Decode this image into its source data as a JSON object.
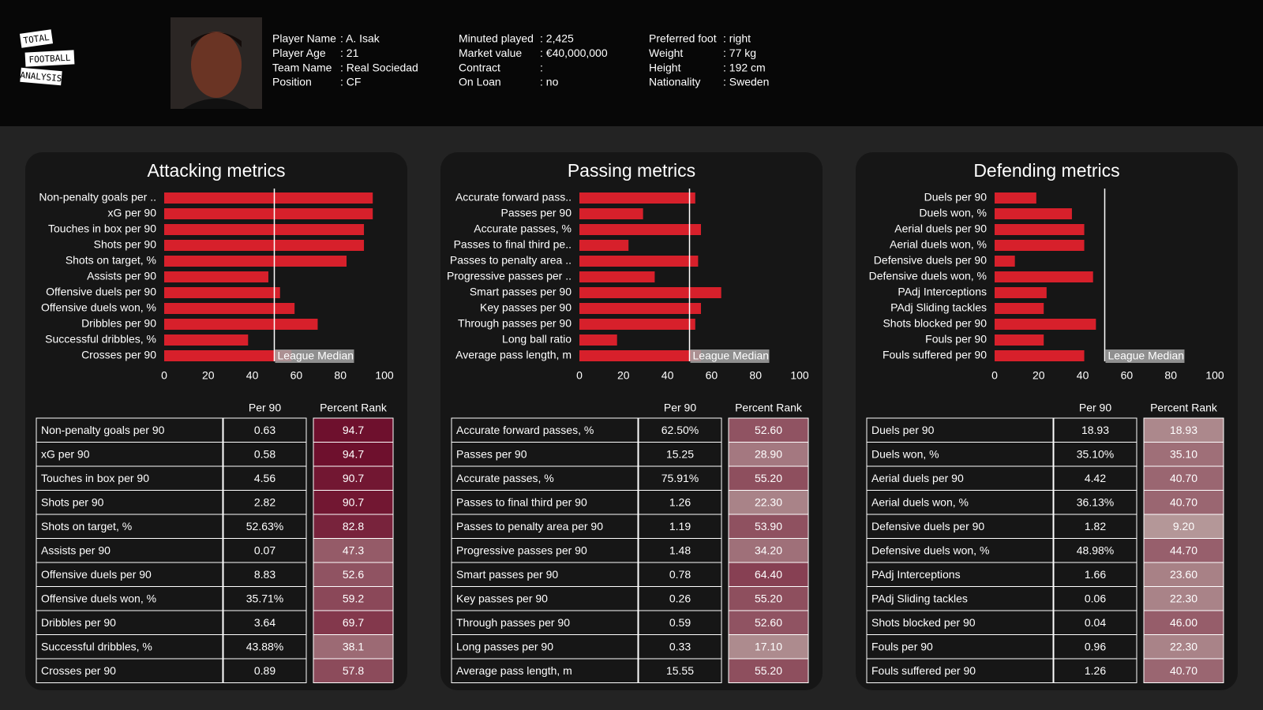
{
  "header": {
    "logo": [
      "TOTAL",
      "FOOTBALL",
      "ANALYSIS"
    ],
    "info": [
      [
        {
          "label": "Player Name",
          "value": ": A. Isak"
        },
        {
          "label": "Player Age",
          "value": ": 21"
        },
        {
          "label": "Team Name",
          "value": ": Real Sociedad"
        },
        {
          "label": "Position",
          "value": ": CF"
        }
      ],
      [
        {
          "label": "Minuted played",
          "value": ": 2,425"
        },
        {
          "label": "Market value",
          "value": ": €40,000,000"
        },
        {
          "label": "Contract",
          "value": ":"
        },
        {
          "label": "On Loan",
          "value": ": no"
        }
      ],
      [
        {
          "label": "Preferred foot",
          "value": ": right"
        },
        {
          "label": "Weight",
          "value": ": 77 kg"
        },
        {
          "label": "Height",
          "value": ": 192 cm"
        },
        {
          "label": "Nationality",
          "value": ": Sweden"
        }
      ]
    ]
  },
  "panels": [
    {
      "chart_data": {
        "type": "bar",
        "orientation": "horizontal",
        "title": "Attacking metrics",
        "color": "#d7202b",
        "categories": [
          "Non-penalty goals per ..",
          "xG per 90",
          "Touches in box per 90",
          "Shots per 90",
          "Shots on target, %",
          "Assists per 90",
          "Offensive duels per 90",
          "Offensive duels won, %",
          "Dribbles per 90",
          "Successful dribbles, %",
          "Crosses per 90"
        ],
        "values": [
          94.7,
          94.7,
          90.7,
          90.7,
          82.8,
          47.3,
          52.6,
          59.2,
          69.7,
          38.1,
          57.8
        ],
        "xlim": [
          0,
          100
        ],
        "xticks": [
          0,
          20,
          40,
          60,
          80,
          100
        ],
        "median": {
          "value": 50,
          "label": "League Median"
        }
      },
      "table": {
        "columns": [
          "Per 90",
          "Percent Rank"
        ],
        "color_scale": [
          "#bba6a4",
          "#6a0826"
        ],
        "rows": [
          [
            "Non-penalty goals per 90",
            "0.63",
            "94.7"
          ],
          [
            "xG per 90",
            "0.58",
            "94.7"
          ],
          [
            "Touches in box per 90",
            "4.56",
            "90.7"
          ],
          [
            "Shots per 90",
            "2.82",
            "90.7"
          ],
          [
            "Shots on target, %",
            "52.63%",
            "82.8"
          ],
          [
            "Assists per 90",
            "0.07",
            "47.3"
          ],
          [
            "Offensive duels per 90",
            "8.83",
            "52.6"
          ],
          [
            "Offensive duels won, %",
            "35.71%",
            "59.2"
          ],
          [
            "Dribbles per 90",
            "3.64",
            "69.7"
          ],
          [
            "Successful dribbles, %",
            "43.88%",
            "38.1"
          ],
          [
            "Crosses per 90",
            "0.89",
            "57.8"
          ]
        ]
      }
    },
    {
      "chart_data": {
        "type": "bar",
        "orientation": "horizontal",
        "title": "Passing metrics",
        "color": "#d7202b",
        "categories": [
          "Accurate forward pass..",
          "Passes per 90",
          "Accurate passes, %",
          "Passes to final third pe..",
          "Passes to penalty area ..",
          "Progressive passes per ..",
          "Smart passes per 90",
          "Key passes per 90",
          "Through passes per 90",
          "Long ball ratio",
          "Average pass length, m"
        ],
        "values": [
          52.6,
          28.9,
          55.2,
          22.3,
          53.9,
          34.2,
          64.4,
          55.2,
          52.6,
          17.1,
          55.2
        ],
        "xlim": [
          0,
          100
        ],
        "xticks": [
          0,
          20,
          40,
          60,
          80,
          100
        ],
        "median": {
          "value": 50,
          "label": "League Median"
        }
      },
      "table": {
        "columns": [
          "Per 90",
          "Percent Rank"
        ],
        "color_scale": [
          "#bba6a4",
          "#6a0826"
        ],
        "rows": [
          [
            "Accurate forward passes, %",
            "62.50%",
            "52.60"
          ],
          [
            "Passes per 90",
            "15.25",
            "28.90"
          ],
          [
            "Accurate passes, %",
            "75.91%",
            "55.20"
          ],
          [
            "Passes to final third per 90",
            "1.26",
            "22.30"
          ],
          [
            "Passes to penalty area per 90",
            "1.19",
            "53.90"
          ],
          [
            "Progressive passes per 90",
            "1.48",
            "34.20"
          ],
          [
            "Smart passes per 90",
            "0.78",
            "64.40"
          ],
          [
            "Key passes per 90",
            "0.26",
            "55.20"
          ],
          [
            "Through passes per 90",
            "0.59",
            "52.60"
          ],
          [
            "Long passes per 90",
            "0.33",
            "17.10"
          ],
          [
            "Average pass length, m",
            "15.55",
            "55.20"
          ]
        ]
      }
    },
    {
      "chart_data": {
        "type": "bar",
        "orientation": "horizontal",
        "title": "Defending metrics",
        "color": "#d7202b",
        "categories": [
          "Duels per 90",
          "Duels won, %",
          "Aerial duels per 90",
          "Aerial duels won, %",
          "Defensive duels per 90",
          "Defensive duels won, %",
          "PAdj Interceptions",
          "PAdj Sliding tackles",
          "Shots blocked per 90",
          "Fouls per 90",
          "Fouls suffered per 90"
        ],
        "values": [
          18.93,
          35.1,
          40.7,
          40.7,
          9.2,
          44.7,
          23.6,
          22.3,
          46.0,
          22.3,
          40.7
        ],
        "xlim": [
          0,
          100
        ],
        "xticks": [
          0,
          20,
          40,
          60,
          80,
          100
        ],
        "median": {
          "value": 50,
          "label": "League Median"
        }
      },
      "table": {
        "columns": [
          "Per 90",
          "Percent Rank"
        ],
        "color_scale": [
          "#bba6a4",
          "#6a0826"
        ],
        "rows": [
          [
            "Duels per 90",
            "18.93",
            "18.93"
          ],
          [
            "Duels won, %",
            "35.10%",
            "35.10"
          ],
          [
            "Aerial duels per 90",
            "4.42",
            "40.70"
          ],
          [
            "Aerial duels won, %",
            "36.13%",
            "40.70"
          ],
          [
            "Defensive duels per 90",
            "1.82",
            "9.20"
          ],
          [
            "Defensive duels won, %",
            "48.98%",
            "44.70"
          ],
          [
            "PAdj Interceptions",
            "1.66",
            "23.60"
          ],
          [
            "PAdj Sliding tackles",
            "0.06",
            "22.30"
          ],
          [
            "Shots blocked per 90",
            "0.04",
            "46.00"
          ],
          [
            "Fouls per 90",
            "0.96",
            "22.30"
          ],
          [
            "Fouls suffered per 90",
            "1.26",
            "40.70"
          ]
        ]
      }
    }
  ]
}
